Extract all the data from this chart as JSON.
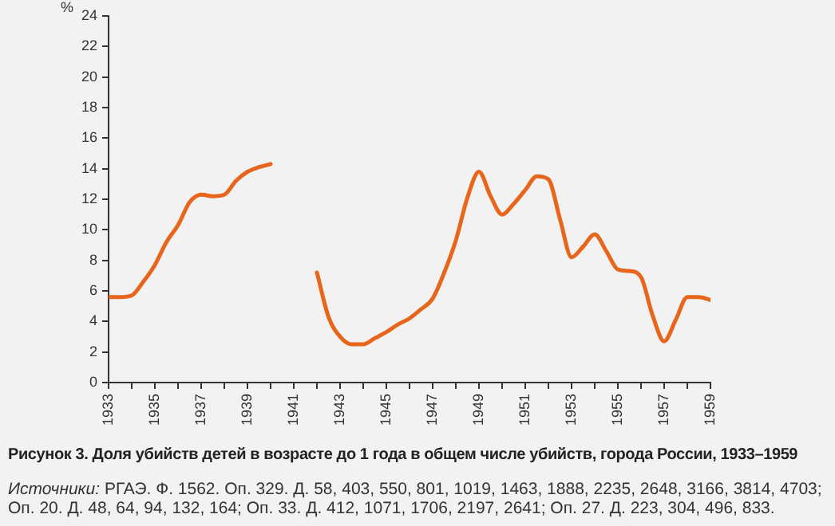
{
  "chart_data": {
    "type": "line",
    "title": "Рисунок 3. Доля убийств детей в возрасте до 1 года в общем числе убийств, города России, 1933–1959",
    "ylabel": "%",
    "annotations": [
      "Источники: РГАЭ. Ф. 1562. Оп. 329. Д. 58, 403, 550, 801, 1019, 1463, 1888, 2235, 2648, 3166, 3814, 4703; Оп. 20. Д. 48, 64, 94, 132, 164; Оп. 33. Д. 412, 1071, 1706, 2197, 2641; Оп. 27. Д. 223, 304, 496, 833."
    ],
    "xlim": [
      1933,
      1959
    ],
    "xticks": [
      1933,
      {
        "value": 1934,
        "label": null
      },
      1935,
      {
        "value": 1936,
        "label": null
      },
      1937,
      {
        "value": 1938,
        "label": null
      },
      1939,
      {
        "value": 1940,
        "label": null
      },
      1941,
      {
        "value": 1942,
        "label": null
      },
      1943,
      {
        "value": 1944,
        "label": null
      },
      1945,
      {
        "value": 1946,
        "label": null
      },
      1947,
      {
        "value": 1948,
        "label": null
      },
      1949,
      {
        "value": 1950,
        "label": null
      },
      1951,
      {
        "value": 1952,
        "label": null
      },
      1953,
      {
        "value": 1954,
        "label": null
      },
      1955,
      {
        "value": 1956,
        "label": null
      },
      1957,
      {
        "value": 1958,
        "label": null
      },
      1959
    ],
    "ylim": [
      0,
      24
    ],
    "yticks": [
      0,
      2,
      4,
      6,
      8,
      10,
      12,
      14,
      16,
      18,
      20,
      22,
      24
    ],
    "grid": false,
    "legend": false,
    "marker": "none",
    "line_style": "solid",
    "series": [
      {
        "color": "#e8651c",
        "x": [
          1933,
          1933.5,
          1934,
          1934.5,
          1935,
          1935.5,
          1936,
          1936.5,
          1937,
          1937.5,
          1938,
          1938.5,
          1939,
          1939.5,
          1940,
          1941,
          1942,
          1942.5,
          1943,
          1943.5,
          1944,
          1944.5,
          1945,
          1945.5,
          1946,
          1946.5,
          1947,
          1947.5,
          1948,
          1948.5,
          1949,
          1949.5,
          1950,
          1950.5,
          1951,
          1951.5,
          1952,
          1952.5,
          1953,
          1953.5,
          1954,
          1954.5,
          1955,
          1955.5,
          1956,
          1956.5,
          1957,
          1957.5,
          1958,
          1958.5,
          1959
        ],
        "values": [
          5.6,
          5.6,
          5.7,
          6.6,
          7.7,
          9.2,
          10.3,
          11.8,
          12.3,
          12.2,
          12.3,
          13.2,
          13.8,
          14.1,
          14.3,
          null,
          7.2,
          4.3,
          3.0,
          2.5,
          2.5,
          2.9,
          3.3,
          3.8,
          4.2,
          4.8,
          5.5,
          7.2,
          9.3,
          12.1,
          13.8,
          12.2,
          11.0,
          11.7,
          12.6,
          13.5,
          13.3,
          10.7,
          8.2,
          8.9,
          9.7,
          8.6,
          7.4,
          7.3,
          6.9,
          4.4,
          2.7,
          4.1,
          5.6,
          5.6,
          5.4
        ]
      }
    ]
  }
}
